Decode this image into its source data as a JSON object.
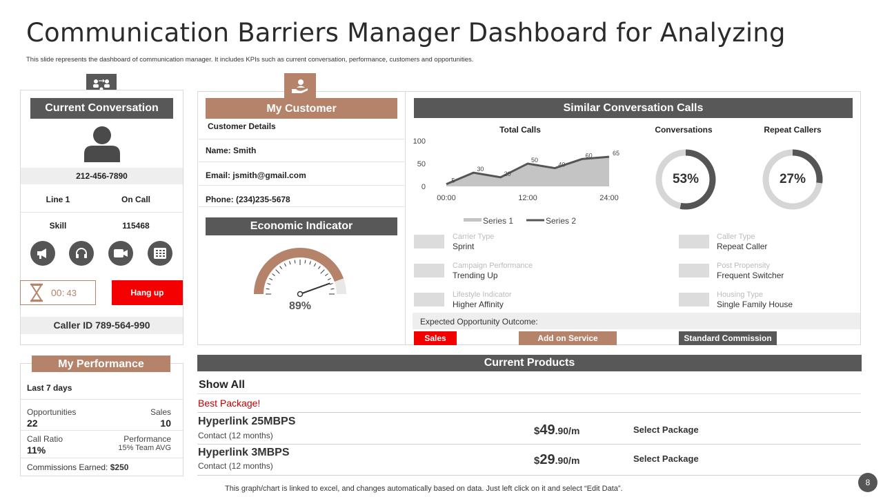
{
  "slide": {
    "title": "Communication Barriers Manager Dashboard for Analyzing",
    "subtitle": "This slide represents the dashboard of communication manager. It includes KPIs  such as current conversation, performance, customers and opportunities.",
    "footer_note": "This graph/chart is linked to excel,  and changes automatically based on data. Just left click on it and select “Edit Data”.",
    "page_number": "8"
  },
  "current_conversation": {
    "header": "Current Conversation",
    "phone": "212-456-7890",
    "line_label": "Line 1",
    "line_status": "On Call",
    "skill_label": "Skill",
    "skill_value": "115468",
    "timer_prefix": "00:",
    "timer_seconds": "43",
    "hangup_label": "Hang up",
    "caller_id": "Caller ID 789-564-990",
    "action_icons": [
      "megaphone-icon",
      "headset-icon",
      "video-camera-icon",
      "keypad-icon"
    ]
  },
  "my_customer": {
    "header": "My Customer",
    "details_label": "Customer Details",
    "name": "Name: Smith",
    "email": "Email: jsmith@gmail.com",
    "phone": "Phone: (234)235-5678"
  },
  "economic_indicator": {
    "header": "Economic Indicator",
    "value_label": "89%",
    "value": 89
  },
  "similar_calls": {
    "header": "Similar Conversation Calls",
    "total_calls_title": "Total Calls",
    "conversations_title": "Conversations",
    "conversations_value": "53%",
    "conversations_pct": 53,
    "repeat_title": "Repeat Callers",
    "repeat_value": "27%",
    "repeat_pct": 27,
    "attributes": [
      {
        "label": "Carrier Type",
        "value": "Sprint"
      },
      {
        "label": "Caller Type",
        "value": "Repeat Caller"
      },
      {
        "label": "Campaign Performance",
        "value": "Trending Up"
      },
      {
        "label": "Post Propensity",
        "value": "Frequent Switcher"
      },
      {
        "label": "Lifestyle Indicator",
        "value": "Higher Affinity"
      },
      {
        "label": "Housing Type",
        "value": "Single Family House"
      }
    ],
    "outcome_label": "Expected Opportunity Outcome:",
    "outcome_buttons": [
      "Sales",
      "Add on Service",
      "Standard Commission"
    ],
    "colors": {
      "red": "#f40000",
      "tan": "#b5826a",
      "dark": "#585858"
    }
  },
  "chart_data": {
    "type": "area",
    "title": "Total Calls",
    "x_tick_labels": [
      "00:00",
      "12:00",
      "24:00"
    ],
    "ylim": [
      0,
      100
    ],
    "y_ticks": [
      0,
      50,
      100
    ],
    "series": [
      {
        "name": "Series 1",
        "values": [
          5,
          30,
          20,
          50,
          40,
          60,
          65
        ]
      },
      {
        "name": "Series 2",
        "values": [
          5,
          30,
          20,
          50,
          40,
          60,
          65
        ]
      }
    ],
    "data_labels": [
      "5",
      "30",
      "20",
      "50",
      "40",
      "60",
      "65"
    ],
    "legend": "bottom"
  },
  "my_performance": {
    "header": "My Performance",
    "period": "Last 7 days",
    "opportunities_label": "Opportunities",
    "opportunities_value": "22",
    "sales_label": "Sales",
    "sales_value": "10",
    "call_ratio_label": "Call Ratio",
    "call_ratio_value": "11%",
    "performance_label": "Performance",
    "performance_value": "15% Team AVG",
    "commissions_label": "Commissions Earned:",
    "commissions_value": "$250"
  },
  "current_products": {
    "header": "Current Products",
    "show_all": "Show All",
    "best_package": "Best Package!",
    "items": [
      {
        "name": "Hyperlink 25MBPS",
        "term": "Contact (12 months)",
        "price_dollar": "$",
        "price_main": "49",
        "price_rest": ".90/m",
        "action": "Select Package"
      },
      {
        "name": "Hyperlink 3MBPS",
        "term": "Contact (12 months)",
        "price_dollar": "$",
        "price_main": "29",
        "price_rest": ".90/m",
        "action": "Select Package"
      }
    ]
  }
}
